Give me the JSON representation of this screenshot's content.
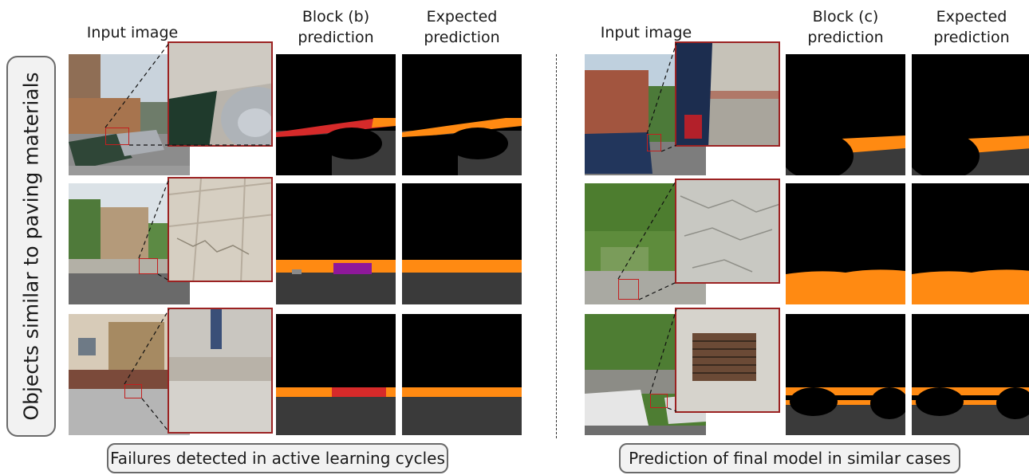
{
  "side_label": "Objects similar to paving materials",
  "left_panel": {
    "headers": {
      "input": "Input image",
      "pred_line1": "Block (b)",
      "pred_line2": "prediction",
      "exp_line1": "Expected",
      "exp_line2": "prediction"
    },
    "caption": "Failures detected in active learning cycles"
  },
  "right_panel": {
    "headers": {
      "input": "Input image",
      "pred_line1": "Block (c)",
      "pred_line2": "prediction",
      "exp_line1": "Expected",
      "exp_line2": "prediction"
    },
    "caption": "Prediction of final model in similar cases"
  },
  "segmentation_colors": {
    "background": "#000000",
    "road": "#3a3a3a",
    "sidewalk": "#ff8a12",
    "curb_error": "#d62a2a",
    "other_error": "#8e189a",
    "sky_grey": "#8a8a8a",
    "highlight_box": "#c21f1f"
  }
}
